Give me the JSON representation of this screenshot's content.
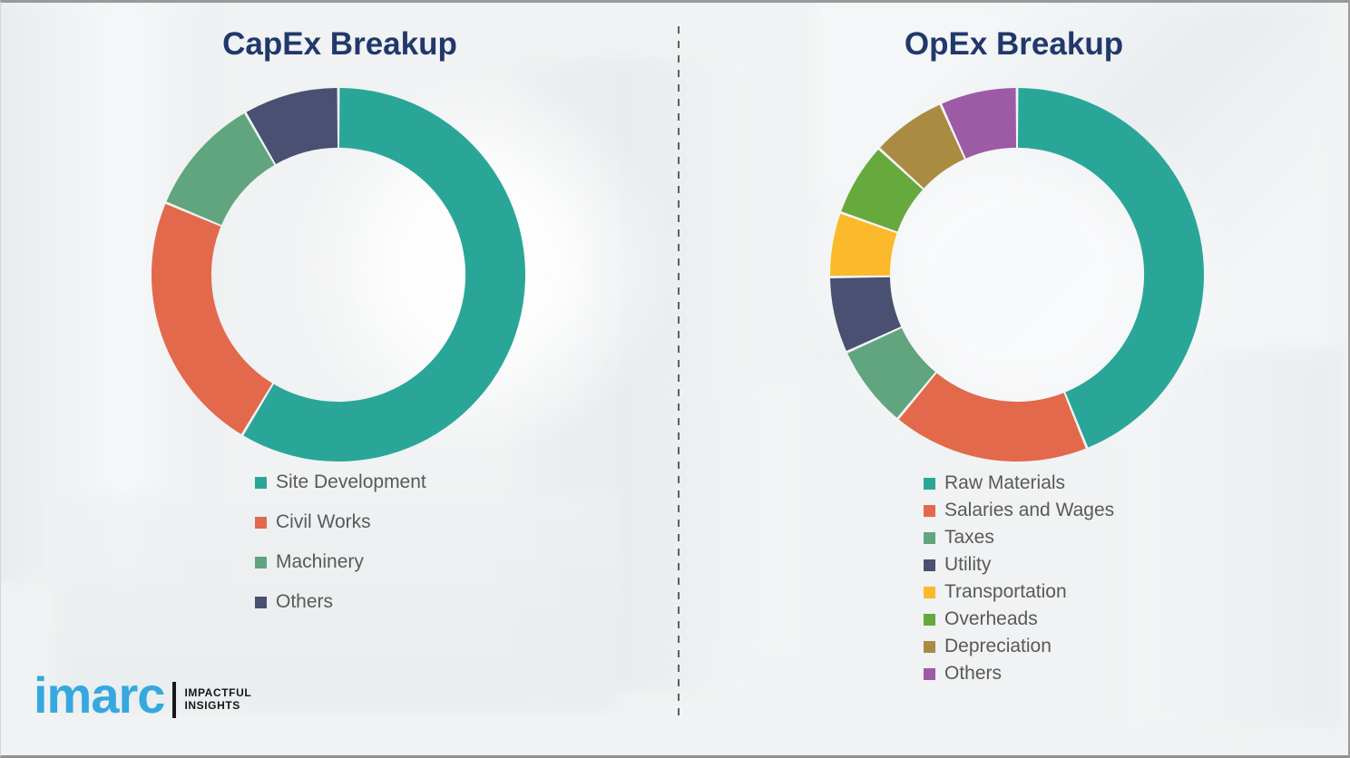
{
  "style": {
    "title_color": "#21386B",
    "legend_text_color": "#595959",
    "divider_color": "#5f5f5f",
    "background_color": "#f0f2f3",
    "logo_blue": "#35A8E0",
    "logo_black": "#161616",
    "segment_gap_color": "#ffffff"
  },
  "logo": {
    "brand": "imarc",
    "tagline_line1": "IMPACTFUL",
    "tagline_line2": "INSIGHTS"
  },
  "chart_data": [
    {
      "type": "pie",
      "subtype": "donut",
      "title": "CapEx Breakup",
      "labels": [
        "Site Development",
        "Civil Works",
        "Machinery",
        "Others"
      ],
      "values": [
        58.6,
        22.7,
        10.4,
        8.3
      ],
      "colors": [
        "#2AA699",
        "#E2694B",
        "#60A57E",
        "#495071"
      ],
      "start_angle_deg": 0,
      "direction": "clockwise",
      "donut_hole_ratio": 0.68,
      "legend_position": "bottom-left",
      "data_labels": false
    },
    {
      "type": "pie",
      "subtype": "donut",
      "title": "OpEx Breakup",
      "labels": [
        "Raw Materials",
        "Salaries and Wages",
        "Taxes",
        "Utility",
        "Transportation",
        "Overheads",
        "Depreciation",
        "Others"
      ],
      "values": [
        43.9,
        17.1,
        7.2,
        6.6,
        5.6,
        6.4,
        6.5,
        6.7
      ],
      "colors": [
        "#2AA699",
        "#E2694B",
        "#60A57E",
        "#495071",
        "#FBB92B",
        "#66A93C",
        "#A98B42",
        "#9D5BA5"
      ],
      "start_angle_deg": 0,
      "direction": "clockwise",
      "donut_hole_ratio": 0.68,
      "legend_position": "bottom-left",
      "data_labels": false
    }
  ]
}
